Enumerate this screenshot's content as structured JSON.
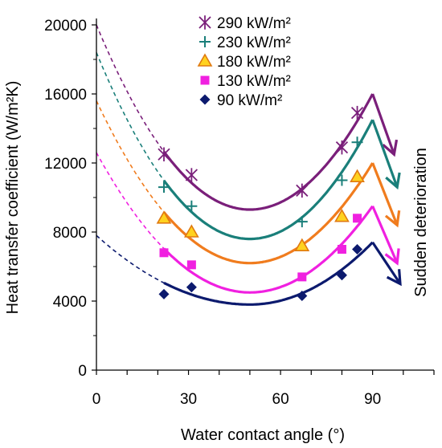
{
  "chart_data": {
    "type": "scatter",
    "title": "",
    "xlabel": "Water contact angle (°)",
    "ylabel": "Heat transfer coefficient (W/m²K)",
    "xlim": [
      0,
      110
    ],
    "ylim": [
      0,
      20000
    ],
    "x_ticks": [
      0,
      30,
      60,
      90
    ],
    "y_ticks": [
      0,
      4000,
      8000,
      12000,
      16000,
      20000
    ],
    "grid": false,
    "legend_position": "top-center",
    "annotation": "Sudden deterioration",
    "series": [
      {
        "name": "290 kW/m²",
        "color": "#7a1f7a",
        "marker": "asterisk",
        "points": [
          [
            22,
            12500
          ],
          [
            31,
            11300
          ],
          [
            67,
            10400
          ],
          [
            80,
            12900
          ],
          [
            85,
            14900
          ]
        ],
        "fit_start": [
          0,
          20000
        ],
        "fit_min": [
          50,
          9300
        ],
        "fit_peak": [
          90,
          16000
        ],
        "drop_to": [
          97,
          12500
        ]
      },
      {
        "name": "230 kW/m²",
        "color": "#1a7f7a",
        "marker": "plus",
        "points": [
          [
            22,
            10600
          ],
          [
            31,
            9500
          ],
          [
            67,
            8600
          ],
          [
            80,
            11000
          ],
          [
            85,
            13200
          ]
        ],
        "fit_start": [
          0,
          18400
        ],
        "fit_min": [
          50,
          7600
        ],
        "fit_peak": [
          90,
          14500
        ],
        "drop_to": [
          98,
          10600
        ]
      },
      {
        "name": "180 kW/m²",
        "color": "#f07c1e",
        "marker": "triangle",
        "points": [
          [
            22,
            8800
          ],
          [
            31,
            8000
          ],
          [
            67,
            7200
          ],
          [
            80,
            8900
          ],
          [
            85,
            11200
          ]
        ],
        "fit_start": [
          0,
          15600
        ],
        "fit_min": [
          50,
          6200
        ],
        "fit_peak": [
          90,
          12000
        ],
        "drop_to": [
          98,
          8400
        ]
      },
      {
        "name": "130 kW/m²",
        "color": "#f020e0",
        "marker": "square",
        "points": [
          [
            22,
            6800
          ],
          [
            31,
            6100
          ],
          [
            67,
            5400
          ],
          [
            80,
            7000
          ],
          [
            85,
            8800
          ]
        ],
        "fit_start": [
          0,
          12600
        ],
        "fit_min": [
          50,
          4500
        ],
        "fit_peak": [
          90,
          9500
        ],
        "drop_to": [
          98,
          6200
        ]
      },
      {
        "name": "90 kW/m²",
        "color": "#0c1a6e",
        "marker": "diamond",
        "points": [
          [
            22,
            4400
          ],
          [
            31,
            4800
          ],
          [
            67,
            4300
          ],
          [
            80,
            5500
          ],
          [
            85,
            7000
          ]
        ],
        "fit_start": [
          0,
          7800
        ],
        "fit_min": [
          50,
          3800
        ],
        "fit_peak": [
          90,
          7400
        ],
        "drop_to": [
          99,
          5000
        ]
      }
    ]
  }
}
